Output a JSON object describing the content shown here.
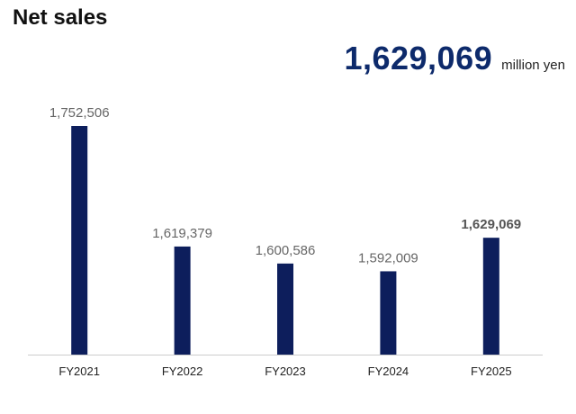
{
  "title": "Net sales",
  "headline": {
    "value": "1,629,069",
    "unit": "million yen"
  },
  "colors": {
    "bar": "#0d1e5c",
    "axis": "#cccccc",
    "label": "#666666",
    "highlight_label": "#555555"
  },
  "chart_data": {
    "type": "bar",
    "categories": [
      "FY2021",
      "FY2022",
      "FY2023",
      "FY2024",
      "FY2025"
    ],
    "values": [
      1752506,
      1619379,
      1600586,
      1592009,
      1629069
    ],
    "value_labels": [
      "1,752,506",
      "1,619,379",
      "1,600,586",
      "1,592,009",
      "1,629,069"
    ],
    "highlight_index": 4,
    "title": "Net sales",
    "xlabel": "",
    "ylabel": "",
    "ylim": [
      1500000,
      1800000
    ],
    "grid": false
  }
}
